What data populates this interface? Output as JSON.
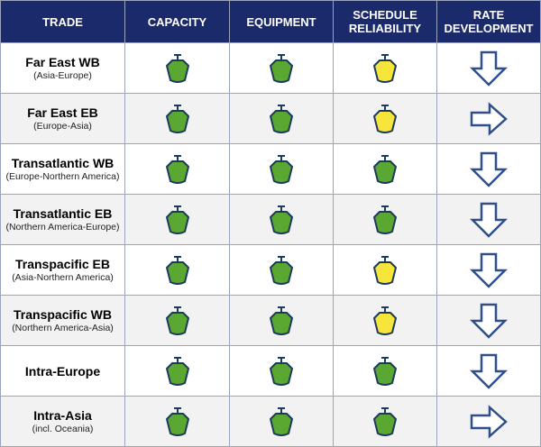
{
  "header": {
    "trade": "TRADE",
    "capacity": "CAPACITY",
    "equipment": "EQUIPMENT",
    "schedule": "SCHEDULE RELIABILITY",
    "rate": "RATE DEVELOPMENT"
  },
  "colors": {
    "green": "#5aa832",
    "yellow": "#f7e53c",
    "outline": "#1b3a5e",
    "arrow": "#2f4f8a",
    "header_bg": "#1b2a6b"
  },
  "rows": [
    {
      "name": "Far East WB",
      "sub": "(Asia-Europe)",
      "capacity": "green",
      "equipment": "green",
      "schedule": "yellow",
      "rate": "down"
    },
    {
      "name": "Far East EB",
      "sub": "(Europe-Asia)",
      "capacity": "green",
      "equipment": "green",
      "schedule": "yellow",
      "rate": "right"
    },
    {
      "name": "Transatlantic WB",
      "sub": "(Europe-Northern America)",
      "capacity": "green",
      "equipment": "green",
      "schedule": "green",
      "rate": "down"
    },
    {
      "name": "Transatlantic EB",
      "sub": "(Northern America-Europe)",
      "capacity": "green",
      "equipment": "green",
      "schedule": "green",
      "rate": "down"
    },
    {
      "name": "Transpacific EB",
      "sub": "(Asia-Northern America)",
      "capacity": "green",
      "equipment": "green",
      "schedule": "yellow",
      "rate": "down"
    },
    {
      "name": "Transpacific WB",
      "sub": "(Northern America-Asia)",
      "capacity": "green",
      "equipment": "green",
      "schedule": "yellow",
      "rate": "down"
    },
    {
      "name": "Intra-Europe",
      "sub": "",
      "capacity": "green",
      "equipment": "green",
      "schedule": "green",
      "rate": "down"
    },
    {
      "name": "Intra-Asia",
      "sub": "(incl. Oceania)",
      "capacity": "green",
      "equipment": "green",
      "schedule": "green",
      "rate": "right"
    }
  ]
}
